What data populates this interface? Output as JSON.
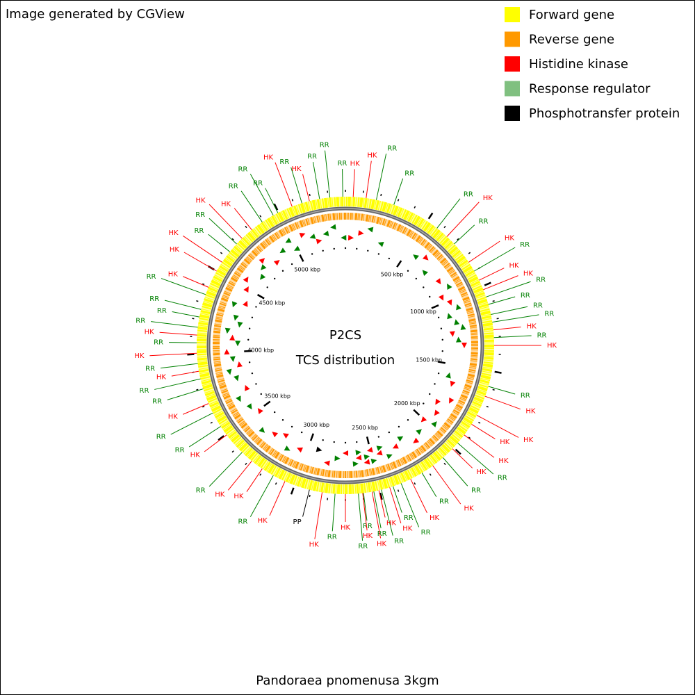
{
  "header": {
    "credit": "Image generated by CGView"
  },
  "legend": [
    {
      "label": "Forward gene",
      "color": "#ffff00"
    },
    {
      "label": "Reverse gene",
      "color": "#ff9900"
    },
    {
      "label": "Histidine kinase",
      "color": "#ff0000"
    },
    {
      "label": "Response regulator",
      "color": "#80c080"
    },
    {
      "label": "Phosphotransfer protein",
      "color": "#000000"
    }
  ],
  "center": {
    "title": "P2CS",
    "subtitle": "TCS distribution"
  },
  "footer": {
    "organism": "Pandoraea pnomenusa 3kgm"
  },
  "axis": {
    "genome_length": 5400,
    "minor_tick_interval": 100,
    "ticks": [
      {
        "value": 500,
        "label": "500 kbp"
      },
      {
        "value": 1000,
        "label": "1000 kbp"
      },
      {
        "value": 1500,
        "label": "1500 kbp"
      },
      {
        "value": 2000,
        "label": "2000 kbp"
      },
      {
        "value": 2500,
        "label": "2500 kbp"
      },
      {
        "value": 3000,
        "label": "3000 kbp"
      },
      {
        "value": 3500,
        "label": "3500 kbp"
      },
      {
        "value": 4000,
        "label": "4000 kbp"
      },
      {
        "value": 4500,
        "label": "4500 kbp"
      },
      {
        "value": 5000,
        "label": "5000 kbp"
      }
    ]
  },
  "label_colors": {
    "RR": "#008000",
    "HK": "#ff0000",
    "PP": "#000000"
  },
  "features": [
    {
      "label": "HK",
      "position": 45
    },
    {
      "label": "HK",
      "position": 120
    },
    {
      "label": "RR",
      "position": 180
    },
    {
      "label": "RR",
      "position": 285
    },
    {
      "label": "RR",
      "position": 570
    },
    {
      "label": "HK",
      "position": 645
    },
    {
      "label": "RR",
      "position": 705
    },
    {
      "label": "HK",
      "position": 840
    },
    {
      "label": "RR",
      "position": 900
    },
    {
      "label": "HK",
      "position": 960
    },
    {
      "label": "HK",
      "position": 1020
    },
    {
      "label": "RR",
      "position": 1065
    },
    {
      "label": "RR",
      "position": 1110
    },
    {
      "label": "RR",
      "position": 1170
    },
    {
      "label": "RR",
      "position": 1215
    },
    {
      "label": "HK",
      "position": 1260
    },
    {
      "label": "RR",
      "position": 1305
    },
    {
      "label": "HK",
      "position": 1350
    },
    {
      "label": "RR",
      "position": 1590
    },
    {
      "label": "HK",
      "position": 1650
    },
    {
      "label": "HK",
      "position": 1770
    },
    {
      "label": "HK",
      "position": 1830
    },
    {
      "label": "HK",
      "position": 1905
    },
    {
      "label": "RR",
      "position": 1965
    },
    {
      "label": "HK",
      "position": 2010
    },
    {
      "label": "RR",
      "position": 2085
    },
    {
      "label": "HK",
      "position": 2160
    },
    {
      "label": "RR",
      "position": 2235
    },
    {
      "label": "HK",
      "position": 2310
    },
    {
      "label": "RR",
      "position": 2370
    },
    {
      "label": "RR",
      "position": 2420
    },
    {
      "label": "HK",
      "position": 2440
    },
    {
      "label": "RR",
      "position": 2490
    },
    {
      "label": "HK",
      "position": 2505
    },
    {
      "label": "RR",
      "position": 2535
    },
    {
      "label": "HK",
      "position": 2545
    },
    {
      "label": "RR",
      "position": 2595
    },
    {
      "label": "HK",
      "position": 2600
    },
    {
      "label": "RR",
      "position": 2625
    },
    {
      "label": "HK",
      "position": 2700
    },
    {
      "label": "RR",
      "position": 2760
    },
    {
      "label": "HK",
      "position": 2835
    },
    {
      "label": "PP",
      "position": 2910
    },
    {
      "label": "HK",
      "position": 3060
    },
    {
      "label": "RR",
      "position": 3135
    },
    {
      "label": "HK",
      "position": 3210
    },
    {
      "label": "HK",
      "position": 3285
    },
    {
      "label": "RR",
      "position": 3360
    },
    {
      "label": "HK",
      "position": 3495
    },
    {
      "label": "RR",
      "position": 3555
    },
    {
      "label": "RR",
      "position": 3645
    },
    {
      "label": "HK",
      "position": 3705
    },
    {
      "label": "RR",
      "position": 3795
    },
    {
      "label": "RR",
      "position": 3855
    },
    {
      "label": "HK",
      "position": 3900
    },
    {
      "label": "RR",
      "position": 3945
    },
    {
      "label": "HK",
      "position": 4005
    },
    {
      "label": "RR",
      "position": 4065
    },
    {
      "label": "HK",
      "position": 4110
    },
    {
      "label": "RR",
      "position": 4155
    },
    {
      "label": "RR",
      "position": 4215
    },
    {
      "label": "RR",
      "position": 4260
    },
    {
      "label": "RR",
      "position": 4350
    },
    {
      "label": "HK",
      "position": 4395
    },
    {
      "label": "HK",
      "position": 4500
    },
    {
      "label": "HK",
      "position": 4560
    },
    {
      "label": "RR",
      "position": 4635
    },
    {
      "label": "RR",
      "position": 4695
    },
    {
      "label": "HK",
      "position": 4740
    },
    {
      "label": "HK",
      "position": 4815
    },
    {
      "label": "RR",
      "position": 4890
    },
    {
      "label": "RR",
      "position": 4965
    },
    {
      "label": "RR",
      "position": 4995
    },
    {
      "label": "RR",
      "position": 5145
    },
    {
      "label": "HK",
      "position": 5085
    },
    {
      "label": "HK",
      "position": 5190
    },
    {
      "label": "RR",
      "position": 5250
    },
    {
      "label": "RR",
      "position": 5310
    },
    {
      "label": "RR",
      "position": 5385
    }
  ]
}
